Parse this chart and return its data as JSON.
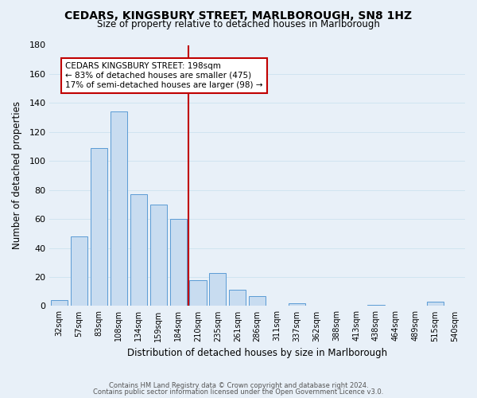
{
  "title": "CEDARS, KINGSBURY STREET, MARLBOROUGH, SN8 1HZ",
  "subtitle": "Size of property relative to detached houses in Marlborough",
  "xlabel": "Distribution of detached houses by size in Marlborough",
  "ylabel": "Number of detached properties",
  "footer_line1": "Contains HM Land Registry data © Crown copyright and database right 2024.",
  "footer_line2": "Contains public sector information licensed under the Open Government Licence v3.0.",
  "categories": [
    "32sqm",
    "57sqm",
    "83sqm",
    "108sqm",
    "134sqm",
    "159sqm",
    "184sqm",
    "210sqm",
    "235sqm",
    "261sqm",
    "286sqm",
    "311sqm",
    "337sqm",
    "362sqm",
    "388sqm",
    "413sqm",
    "438sqm",
    "464sqm",
    "489sqm",
    "515sqm",
    "540sqm"
  ],
  "values": [
    4,
    48,
    109,
    134,
    77,
    70,
    60,
    18,
    23,
    11,
    7,
    0,
    2,
    0,
    0,
    0,
    1,
    0,
    0,
    3,
    0
  ],
  "bar_color": "#c8dcf0",
  "bar_edge_color": "#5b9bd5",
  "highlight_index": 6,
  "vline_color": "#c00000",
  "vline_position": 6.5,
  "ylim": [
    0,
    180
  ],
  "yticks": [
    0,
    20,
    40,
    60,
    80,
    100,
    120,
    140,
    160,
    180
  ],
  "annotation_title": "CEDARS KINGSBURY STREET: 198sqm",
  "annotation_line1": "← 83% of detached houses are smaller (475)",
  "annotation_line2": "17% of semi-detached houses are larger (98) →",
  "annotation_box_color": "#ffffff",
  "annotation_box_edge_color": "#c00000",
  "grid_color": "#d0e4f0",
  "background_color": "#e8f0f8",
  "title_fontsize": 10,
  "subtitle_fontsize": 8.5,
  "ylabel_text": "Number of detached properties"
}
